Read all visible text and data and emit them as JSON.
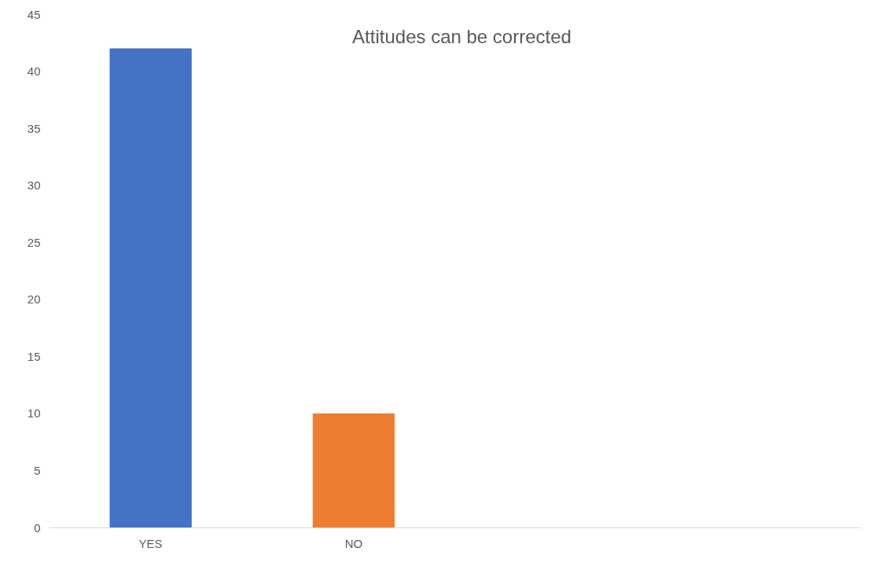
{
  "chart_data": {
    "type": "bar",
    "title": "Attitudes can be corrected",
    "categories": [
      "YES",
      "NO",
      null,
      null
    ],
    "values": [
      42,
      10,
      null,
      null
    ],
    "colors": [
      "#4472c4",
      "#ed7d31",
      "#4472c4",
      "#4472c4"
    ],
    "ylim": [
      0,
      45
    ],
    "yticks": [
      0,
      5,
      10,
      15,
      20,
      25,
      30,
      35,
      40,
      45
    ],
    "grid": false
  }
}
